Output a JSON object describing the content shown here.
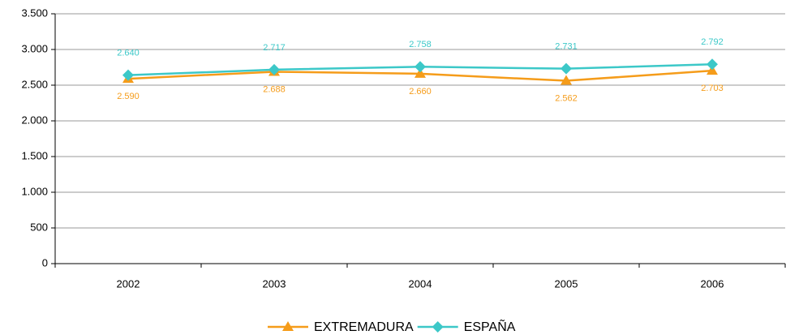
{
  "chart_data": {
    "type": "line",
    "categories": [
      "2002",
      "2003",
      "2004",
      "2005",
      "2006"
    ],
    "series": [
      {
        "name": "EXTREMADURA",
        "color": "#f59c1a",
        "marker": "triangle",
        "label_position": "below",
        "values": [
          2590,
          2688,
          2660,
          2562,
          2703
        ],
        "value_labels": [
          "2.590",
          "2.688",
          "2.660",
          "2.562",
          "2.703"
        ]
      },
      {
        "name": "ESPAÑA",
        "color": "#3cc8c8",
        "marker": "diamond",
        "label_position": "above",
        "values": [
          2640,
          2717,
          2758,
          2731,
          2792
        ],
        "value_labels": [
          "2.640",
          "2.717",
          "2.758",
          "2.731",
          "2.792"
        ]
      }
    ],
    "ylim": [
      0,
      3500
    ],
    "yticks": [
      0,
      500,
      {
        "value": 1000,
        "label": "1.000"
      },
      {
        "value": 1500,
        "label": "1.500"
      },
      {
        "value": 2000,
        "label": "2.000"
      },
      {
        "value": 2500,
        "label": "2.500"
      },
      {
        "value": 3000,
        "label": "3.000"
      },
      {
        "value": 3500,
        "label": "3.500"
      }
    ],
    "grid": true,
    "legend": "bottom"
  }
}
